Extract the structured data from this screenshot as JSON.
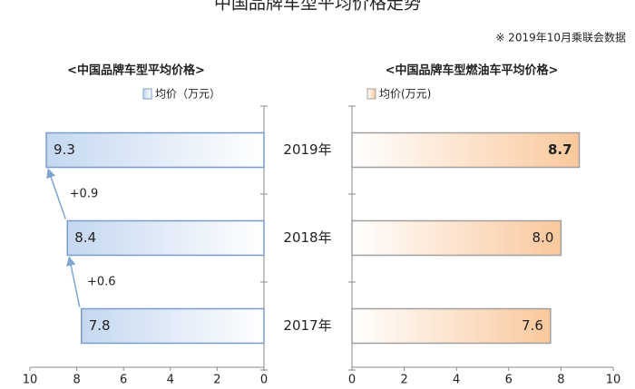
{
  "title": "中国品牌车型平均价格走势",
  "note": "※ 2019年10月乘联会数据",
  "chart_data": [
    {
      "type": "hbar",
      "title": "<中国品牌车型平均价格>",
      "categories": [
        "2019年",
        "2018年",
        "2017年"
      ],
      "series": [
        {
          "name": "均价（万元）",
          "color": "#c5d8f0",
          "values": [
            9.3,
            8.4,
            7.8
          ]
        }
      ],
      "annotations": [
        "+0.9",
        "+0.6"
      ],
      "xlim": [
        10,
        0
      ],
      "xticks": [
        10,
        8,
        6,
        4,
        2,
        0
      ]
    },
    {
      "type": "hbar",
      "title": "<中国品牌车型燃油车平均价格>",
      "series": [
        {
          "name": "均价(万元)",
          "color": "#fac89c",
          "values": [
            8.7,
            8.0,
            7.6
          ],
          "value_labels": [
            "8.7",
            "8.0",
            "7.6"
          ]
        }
      ],
      "xlim": [
        0,
        10
      ],
      "xticks": [
        0,
        2,
        4,
        6,
        8,
        10
      ]
    }
  ]
}
